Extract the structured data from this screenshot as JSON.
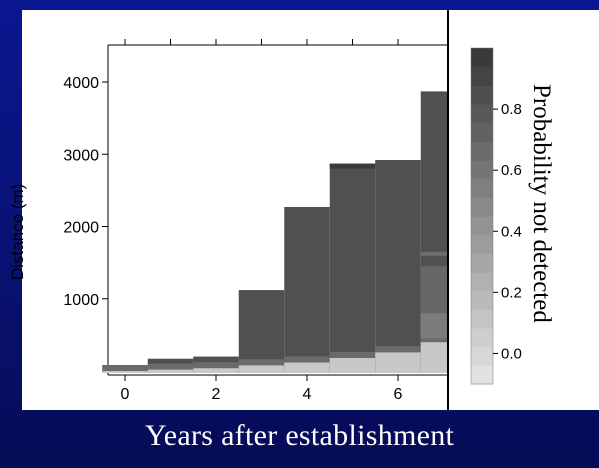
{
  "chart_data": {
    "type": "heatmap",
    "xlabel": "Years after establishment",
    "ylabel": "Distance (m)",
    "colorbar_label": "Probability not detected",
    "x_ticks": [
      "0",
      "2",
      "4",
      "6"
    ],
    "y_ticks": [
      "1000",
      "2000",
      "3000",
      "4000"
    ],
    "colorbar_ticks": [
      "0.0",
      "0.2",
      "0.4",
      "0.6",
      "0.8"
    ],
    "xlim": [
      -0.5,
      7.2
    ],
    "ylim": [
      -50,
      4600
    ],
    "colorbar_range": [
      -0.1,
      1.0
    ],
    "columns": [
      {
        "year": 0,
        "top": 30,
        "light_top": 0
      },
      {
        "year": 1,
        "top": 170,
        "light_top": 20
      },
      {
        "year": 2,
        "top": 200,
        "light_top": 40
      },
      {
        "year": 3,
        "top": 1120,
        "light_top": 80
      },
      {
        "year": 4,
        "top": 2270,
        "light_top": 120
      },
      {
        "year": 5,
        "top": 2870,
        "light_top": 180
      },
      {
        "year": 6,
        "top": 2920,
        "light_top": 260
      },
      {
        "year": 7,
        "top": 3870,
        "light_top": 400
      }
    ],
    "color_scale": {
      "low": "#e2e2e2",
      "high": "#3a3a3a"
    }
  },
  "colors": {
    "background": "#0b1470",
    "panel": "#ffffff",
    "bars": "#505050"
  }
}
